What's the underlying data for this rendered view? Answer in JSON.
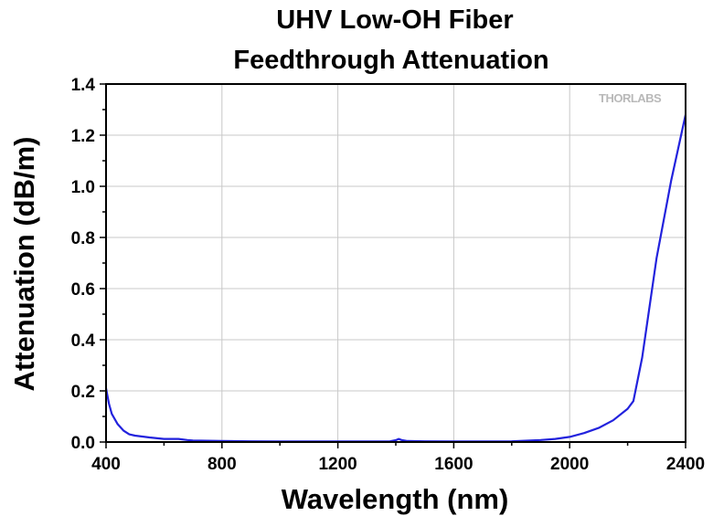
{
  "chart_data": {
    "type": "line",
    "title_lines": [
      "UHV Low-OH Fiber",
      "Feedthrough Attenuation"
    ],
    "xlabel": "Wavelength (nm)",
    "ylabel": "Attenuation (dB/m)",
    "xlim": [
      400,
      2400
    ],
    "ylim": [
      0,
      1.4
    ],
    "x_ticks": [
      400,
      800,
      1200,
      1600,
      2000,
      2400
    ],
    "x_tick_labels": [
      "400",
      "800",
      "1200",
      "1600",
      "2000",
      "2400"
    ],
    "y_ticks": [
      0.0,
      0.2,
      0.4,
      0.6,
      0.8,
      1.0,
      1.2,
      1.4
    ],
    "y_tick_labels": [
      "0.0",
      "0.2",
      "0.4",
      "0.6",
      "0.8",
      "1.0",
      "1.2",
      "1.4"
    ],
    "grid": true,
    "watermark": "THORLABS",
    "line_color": "#2222dd",
    "series": [
      {
        "x": [
          400,
          410,
          420,
          440,
          460,
          480,
          500,
          550,
          600,
          650,
          680,
          700,
          800,
          900,
          1000,
          1100,
          1200,
          1300,
          1380,
          1400,
          1410,
          1420,
          1440,
          1500,
          1600,
          1700,
          1800,
          1900,
          1950,
          2000,
          2050,
          2100,
          2150,
          2200,
          2220,
          2250,
          2300,
          2350,
          2400
        ],
        "y": [
          0.21,
          0.15,
          0.11,
          0.07,
          0.045,
          0.03,
          0.025,
          0.018,
          0.012,
          0.012,
          0.008,
          0.006,
          0.004,
          0.003,
          0.002,
          0.002,
          0.002,
          0.002,
          0.003,
          0.007,
          0.012,
          0.008,
          0.004,
          0.003,
          0.002,
          0.002,
          0.003,
          0.008,
          0.012,
          0.02,
          0.035,
          0.055,
          0.085,
          0.13,
          0.16,
          0.33,
          0.72,
          1.02,
          1.28
        ]
      }
    ]
  }
}
